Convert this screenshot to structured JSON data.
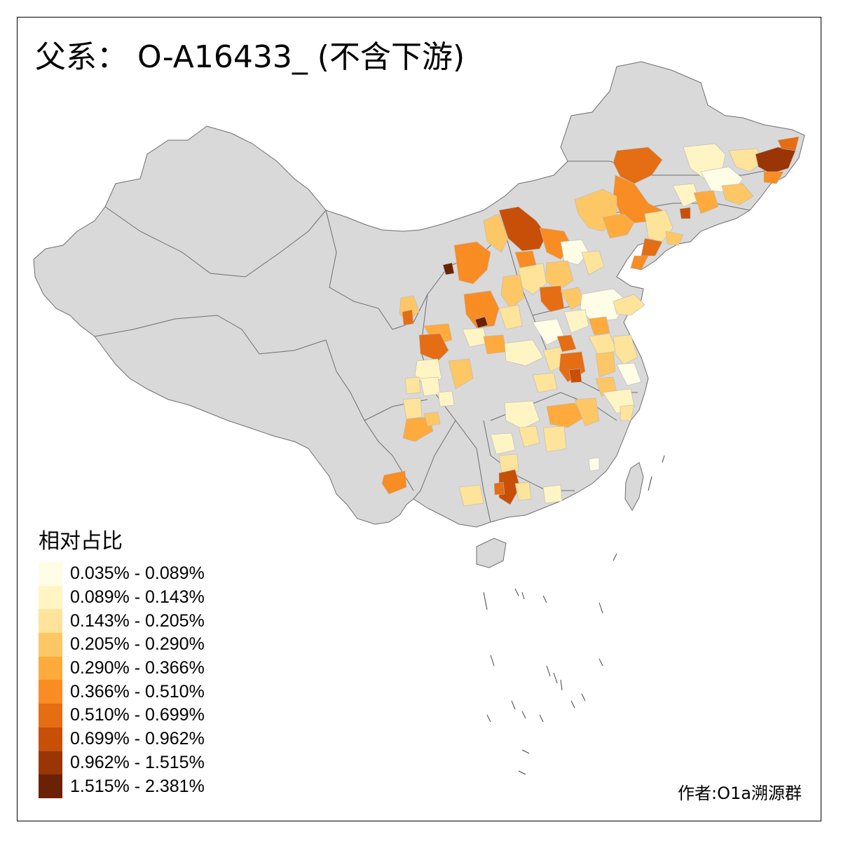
{
  "title": "父系： O-A16433_ (不含下游)",
  "credit": "作者:O1a溯源群",
  "colors": {
    "base_fill": "#d9d9d9",
    "border": "#6e6e6e",
    "frame": "#000000"
  },
  "legend": {
    "title": "相对占比",
    "items": [
      {
        "label": "0.035% - 0.089%",
        "color": "#fffde6"
      },
      {
        "label": "0.089% - 0.143%",
        "color": "#fff5c4"
      },
      {
        "label": "0.143% - 0.205%",
        "color": "#fee39a"
      },
      {
        "label": "0.205% - 0.290%",
        "color": "#fec765"
      },
      {
        "label": "0.290% - 0.366%",
        "color": "#feaa3c"
      },
      {
        "label": "0.366% - 0.510%",
        "color": "#f98c22"
      },
      {
        "label": "0.510% - 0.699%",
        "color": "#e56d13"
      },
      {
        "label": "0.699% - 0.962%",
        "color": "#c84f08"
      },
      {
        "label": "0.962% - 1.515%",
        "color": "#9a3505"
      },
      {
        "label": "1.515% - 2.381%",
        "color": "#6b2204"
      }
    ]
  }
}
